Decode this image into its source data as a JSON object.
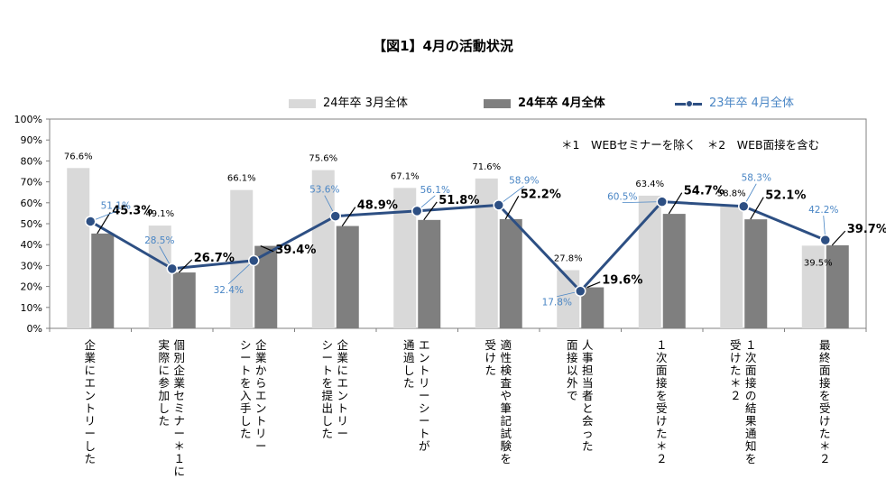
{
  "chart_data": {
    "type": "bar",
    "title": "【図1】4月の活動状況",
    "ylim": [
      0,
      100
    ],
    "y_ticks": [
      "0%",
      "10%",
      "20%",
      "30%",
      "40%",
      "50%",
      "60%",
      "70%",
      "80%",
      "90%",
      "100%"
    ],
    "grid": false,
    "legend_position": "top",
    "categories": [
      [
        "企業にエントリーした"
      ],
      [
        "個別企業セミナー＊１に",
        "実際に参加した"
      ],
      [
        "企業からエントリー",
        "シートを入手した"
      ],
      [
        "企業にエントリー",
        "シートを提出した"
      ],
      [
        "エントリーシートが",
        "通過した"
      ],
      [
        "適性検査や筆記試験を",
        "受けた"
      ],
      [
        "人事担当者と会った",
        "面接以外で"
      ],
      [
        "１次面接を受けた＊２"
      ],
      [
        "１次面接の結果通知を",
        "受けた＊２"
      ],
      [
        "最終面接を受けた＊２"
      ]
    ],
    "series": [
      {
        "name": "24年卒 3月全体",
        "type": "bar",
        "color": "#d9d9d9",
        "values": [
          76.6,
          49.1,
          66.1,
          75.6,
          67.1,
          71.6,
          27.8,
          63.4,
          58.8,
          39.5
        ],
        "labels": [
          "76.6%",
          "49.1%",
          "66.1%",
          "75.6%",
          "67.1%",
          "71.6%",
          "27.8%",
          "63.4%",
          "58.8%",
          "39.5%"
        ]
      },
      {
        "name": "24年卒 4月全体",
        "type": "bar",
        "color": "#7f7f7f",
        "values": [
          45.3,
          26.7,
          39.4,
          48.9,
          51.8,
          52.2,
          19.6,
          54.7,
          52.1,
          39.7
        ],
        "labels": [
          "45.3%",
          "26.7%",
          "39.4%",
          "48.9%",
          "51.8%",
          "52.2%",
          "19.6%",
          "54.7%",
          "52.1%",
          "39.7%"
        ]
      },
      {
        "name": "23年卒 4月全体",
        "type": "line",
        "color": "#2d4f83",
        "label_color": "#4a86c5",
        "values": [
          51.1,
          28.5,
          32.4,
          53.6,
          56.1,
          58.9,
          17.8,
          60.5,
          58.3,
          42.2
        ],
        "labels": [
          "51.1%",
          "28.5%",
          "32.4%",
          "53.6%",
          "56.1%",
          "58.9%",
          "17.8%",
          "60.5%",
          "58.3%",
          "42.2%"
        ]
      }
    ]
  },
  "footnote": "＊1　WEBセミナーを除く　＊2　WEB面接を含む"
}
